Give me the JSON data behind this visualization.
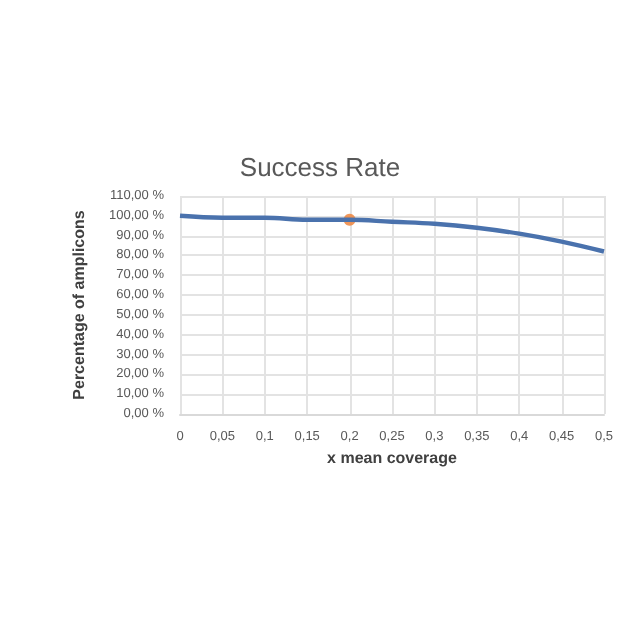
{
  "chart_data": {
    "type": "line",
    "title": "Success Rate",
    "xlabel": "x mean coverage",
    "ylabel": "Percentage of amplicons",
    "series": [
      {
        "color": "#4a72ad",
        "x": [
          0,
          0.05,
          0.1,
          0.15,
          0.2,
          0.25,
          0.3,
          0.35,
          0.4,
          0.45,
          0.5
        ],
        "values": [
          100,
          99,
          99,
          98,
          98,
          97,
          96,
          94,
          91,
          87,
          82
        ]
      },
      {
        "type": "scatter",
        "color": "#ed7d31",
        "marker": "circle",
        "x": [
          0.2
        ],
        "values": [
          98
        ]
      }
    ],
    "xlim": [
      0,
      0.5
    ],
    "xticks": [
      0,
      {
        "value": 0.05,
        "label": "0,05"
      },
      {
        "value": 0.1,
        "label": "0,1"
      },
      {
        "value": 0.15,
        "label": "0,15"
      },
      {
        "value": 0.2,
        "label": "0,2"
      },
      {
        "value": 0.25,
        "label": "0,25"
      },
      {
        "value": 0.3,
        "label": "0,3"
      },
      {
        "value": 0.35,
        "label": "0,35"
      },
      {
        "value": 0.4,
        "label": "0,4"
      },
      {
        "value": 0.45,
        "label": "0,45"
      },
      {
        "value": 0.5,
        "label": "0,5"
      }
    ],
    "ylim": [
      0,
      110
    ],
    "yticks": [
      {
        "value": 0,
        "label": "0,00 %"
      },
      {
        "value": 10,
        "label": "10,00 %"
      },
      {
        "value": 20,
        "label": "20,00 %"
      },
      {
        "value": 30,
        "label": "30,00 %"
      },
      {
        "value": 40,
        "label": "40,00 %"
      },
      {
        "value": 50,
        "label": "50,00 %"
      },
      {
        "value": 60,
        "label": "60,00 %"
      },
      {
        "value": 70,
        "label": "70,00 %"
      },
      {
        "value": 80,
        "label": "80,00 %"
      },
      {
        "value": 90,
        "label": "90,00 %"
      },
      {
        "value": 100,
        "label": "100,00 %"
      },
      {
        "value": 110,
        "label": "110,00 %"
      }
    ],
    "grid": true
  }
}
